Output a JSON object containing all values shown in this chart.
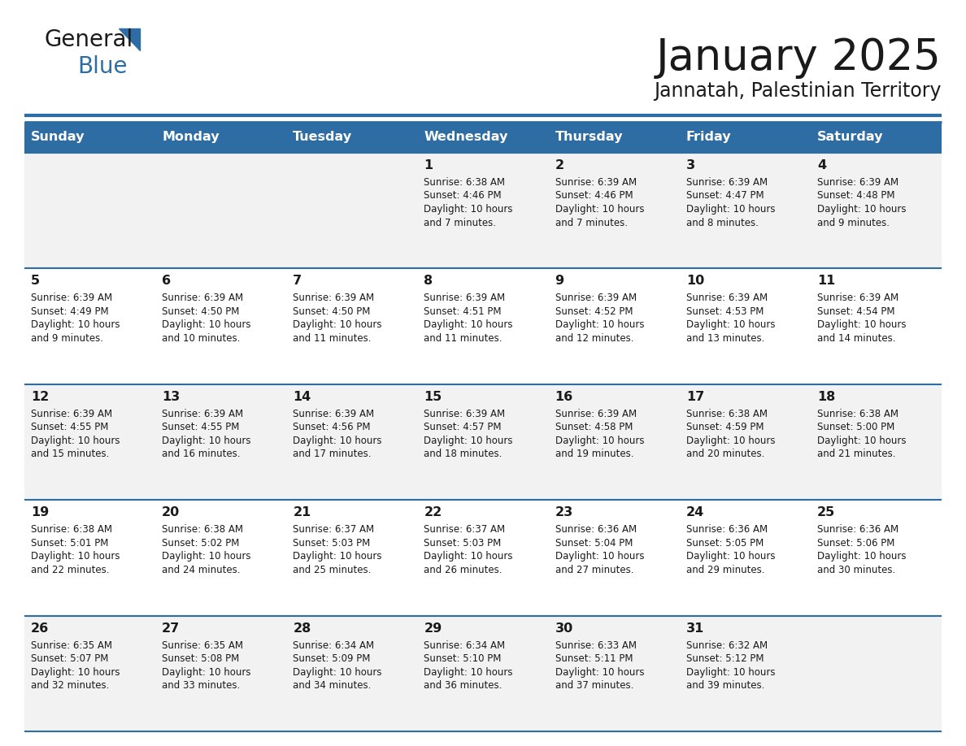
{
  "title": "January 2025",
  "subtitle": "Jannatah, Palestinian Territory",
  "header_bg": "#2e6da4",
  "header_text_color": "#ffffff",
  "cell_bg_white": "#ffffff",
  "cell_bg_gray": "#f2f2f2",
  "border_color": "#2e6da4",
  "text_color": "#1a1a1a",
  "day_names": [
    "Sunday",
    "Monday",
    "Tuesday",
    "Wednesday",
    "Thursday",
    "Friday",
    "Saturday"
  ],
  "weeks": [
    [
      {
        "day": "",
        "sunrise": "",
        "sunset": "",
        "daylight": ""
      },
      {
        "day": "",
        "sunrise": "",
        "sunset": "",
        "daylight": ""
      },
      {
        "day": "",
        "sunrise": "",
        "sunset": "",
        "daylight": ""
      },
      {
        "day": "1",
        "sunrise": "6:38 AM",
        "sunset": "4:46 PM",
        "daylight": "and 7 minutes."
      },
      {
        "day": "2",
        "sunrise": "6:39 AM",
        "sunset": "4:46 PM",
        "daylight": "and 7 minutes."
      },
      {
        "day": "3",
        "sunrise": "6:39 AM",
        "sunset": "4:47 PM",
        "daylight": "and 8 minutes."
      },
      {
        "day": "4",
        "sunrise": "6:39 AM",
        "sunset": "4:48 PM",
        "daylight": "and 9 minutes."
      }
    ],
    [
      {
        "day": "5",
        "sunrise": "6:39 AM",
        "sunset": "4:49 PM",
        "daylight": "and 9 minutes."
      },
      {
        "day": "6",
        "sunrise": "6:39 AM",
        "sunset": "4:50 PM",
        "daylight": "and 10 minutes."
      },
      {
        "day": "7",
        "sunrise": "6:39 AM",
        "sunset": "4:50 PM",
        "daylight": "and 11 minutes."
      },
      {
        "day": "8",
        "sunrise": "6:39 AM",
        "sunset": "4:51 PM",
        "daylight": "and 11 minutes."
      },
      {
        "day": "9",
        "sunrise": "6:39 AM",
        "sunset": "4:52 PM",
        "daylight": "and 12 minutes."
      },
      {
        "day": "10",
        "sunrise": "6:39 AM",
        "sunset": "4:53 PM",
        "daylight": "and 13 minutes."
      },
      {
        "day": "11",
        "sunrise": "6:39 AM",
        "sunset": "4:54 PM",
        "daylight": "and 14 minutes."
      }
    ],
    [
      {
        "day": "12",
        "sunrise": "6:39 AM",
        "sunset": "4:55 PM",
        "daylight": "and 15 minutes."
      },
      {
        "day": "13",
        "sunrise": "6:39 AM",
        "sunset": "4:55 PM",
        "daylight": "and 16 minutes."
      },
      {
        "day": "14",
        "sunrise": "6:39 AM",
        "sunset": "4:56 PM",
        "daylight": "and 17 minutes."
      },
      {
        "day": "15",
        "sunrise": "6:39 AM",
        "sunset": "4:57 PM",
        "daylight": "and 18 minutes."
      },
      {
        "day": "16",
        "sunrise": "6:39 AM",
        "sunset": "4:58 PM",
        "daylight": "and 19 minutes."
      },
      {
        "day": "17",
        "sunrise": "6:38 AM",
        "sunset": "4:59 PM",
        "daylight": "and 20 minutes."
      },
      {
        "day": "18",
        "sunrise": "6:38 AM",
        "sunset": "5:00 PM",
        "daylight": "and 21 minutes."
      }
    ],
    [
      {
        "day": "19",
        "sunrise": "6:38 AM",
        "sunset": "5:01 PM",
        "daylight": "and 22 minutes."
      },
      {
        "day": "20",
        "sunrise": "6:38 AM",
        "sunset": "5:02 PM",
        "daylight": "and 24 minutes."
      },
      {
        "day": "21",
        "sunrise": "6:37 AM",
        "sunset": "5:03 PM",
        "daylight": "and 25 minutes."
      },
      {
        "day": "22",
        "sunrise": "6:37 AM",
        "sunset": "5:03 PM",
        "daylight": "and 26 minutes."
      },
      {
        "day": "23",
        "sunrise": "6:36 AM",
        "sunset": "5:04 PM",
        "daylight": "and 27 minutes."
      },
      {
        "day": "24",
        "sunrise": "6:36 AM",
        "sunset": "5:05 PM",
        "daylight": "and 29 minutes."
      },
      {
        "day": "25",
        "sunrise": "6:36 AM",
        "sunset": "5:06 PM",
        "daylight": "and 30 minutes."
      }
    ],
    [
      {
        "day": "26",
        "sunrise": "6:35 AM",
        "sunset": "5:07 PM",
        "daylight": "and 32 minutes."
      },
      {
        "day": "27",
        "sunrise": "6:35 AM",
        "sunset": "5:08 PM",
        "daylight": "and 33 minutes."
      },
      {
        "day": "28",
        "sunrise": "6:34 AM",
        "sunset": "5:09 PM",
        "daylight": "and 34 minutes."
      },
      {
        "day": "29",
        "sunrise": "6:34 AM",
        "sunset": "5:10 PM",
        "daylight": "and 36 minutes."
      },
      {
        "day": "30",
        "sunrise": "6:33 AM",
        "sunset": "5:11 PM",
        "daylight": "and 37 minutes."
      },
      {
        "day": "31",
        "sunrise": "6:32 AM",
        "sunset": "5:12 PM",
        "daylight": "and 39 minutes."
      },
      {
        "day": "",
        "sunrise": "",
        "sunset": "",
        "daylight": ""
      }
    ]
  ]
}
